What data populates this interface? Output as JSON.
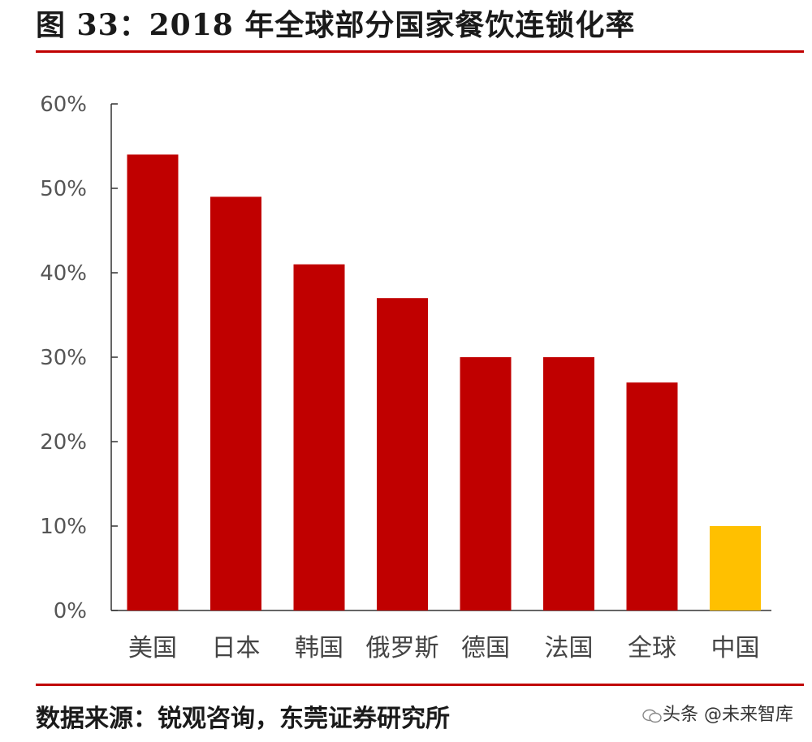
{
  "title": "图 33：2018 年全球部分国家餐饮连锁化率",
  "source": "数据来源：锐观咨询，东莞证券研究所",
  "watermark": "头条 @未来智库",
  "colors": {
    "bar": "#c00000",
    "highlight": "#ffc000",
    "rule": "#c00000"
  },
  "chart_data": {
    "type": "bar",
    "categories": [
      "美国",
      "日本",
      "韩国",
      "俄罗斯",
      "德国",
      "法国",
      "全球",
      "中国"
    ],
    "values": [
      0.54,
      0.49,
      0.41,
      0.37,
      0.3,
      0.3,
      0.27,
      0.1
    ],
    "highlight_category": "中国",
    "ylim": [
      0,
      0.6
    ],
    "yticks": [
      "0%",
      "10%",
      "20%",
      "30%",
      "40%",
      "50%",
      "60%"
    ],
    "grid": false,
    "legend": "none"
  }
}
